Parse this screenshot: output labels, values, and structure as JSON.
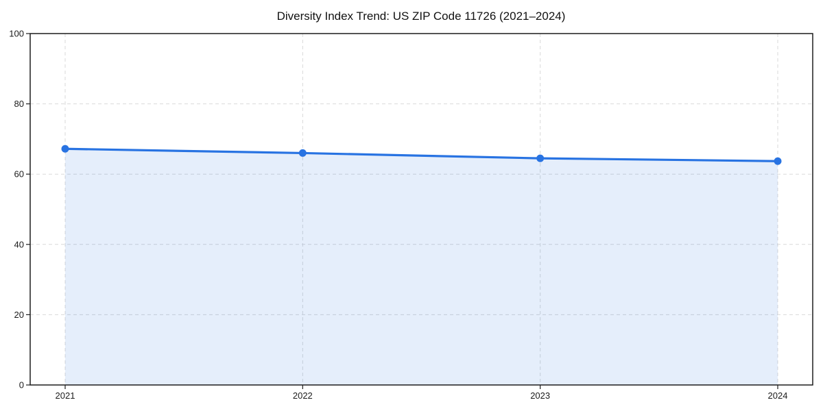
{
  "figure": {
    "background": "#ffffff"
  },
  "chart_data": {
    "type": "area",
    "title": "Diversity Index Trend: US ZIP Code 11726 (2021–2024)",
    "categories": [
      "2021",
      "2022",
      "2023",
      "2024"
    ],
    "series": [
      {
        "name": "Diversity Index",
        "values": [
          67.2,
          66.0,
          64.5,
          63.7
        ]
      }
    ],
    "xlabel": "",
    "ylabel": "",
    "ylim": [
      0,
      100
    ],
    "yticks": [
      0,
      20,
      40,
      60,
      80,
      100
    ],
    "grid": true,
    "grid_style": "dashed",
    "legend": "none",
    "line_color": "#2873e2",
    "marker_color": "#2873e2",
    "fill_color": "rgba(40,115,226,0.12)",
    "gridline_color": "#d9d9d9",
    "axis_color": "#1c1c1c",
    "tick_label_color": "#1a1a1a"
  }
}
